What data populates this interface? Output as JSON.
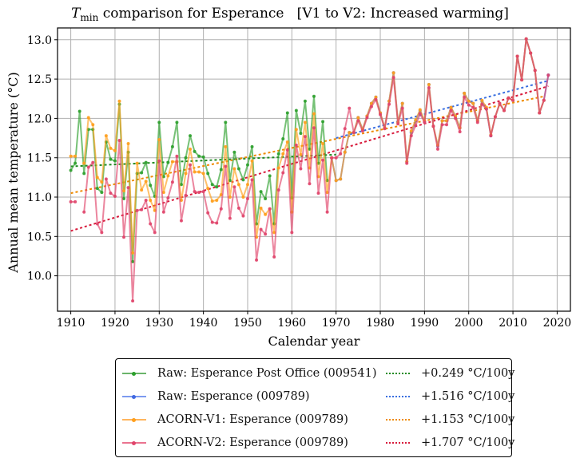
{
  "chart_data": {
    "type": "line",
    "title_symbol": "T",
    "title_subscript": "min",
    "title_rest": " comparison for Esperance   [V1 to V2: Increased warming]",
    "xlabel": "Calendar year",
    "ylabel": "Annual mean temperature (°C)",
    "xlim": [
      1907,
      2023
    ],
    "ylim": [
      9.55,
      13.15
    ],
    "xticks": [
      1910,
      1920,
      1930,
      1940,
      1950,
      1960,
      1970,
      1980,
      1990,
      2000,
      2010,
      2020
    ],
    "yticks": [
      10.0,
      10.5,
      11.0,
      11.5,
      12.0,
      12.5,
      13.0
    ],
    "ytick_labels": [
      "10.0",
      "10.5",
      "11.0",
      "11.5",
      "12.0",
      "12.5",
      "13.0"
    ],
    "grid": true,
    "legend_placement": "below",
    "series": [
      {
        "name": "Raw: Esperance Post Office (009541)",
        "color": "#2ca02c",
        "start_year": 1910,
        "values": [
          11.34,
          11.43,
          12.09,
          11.3,
          11.86,
          11.86,
          11.11,
          11.06,
          11.7,
          11.48,
          11.46,
          12.18,
          10.98,
          11.57,
          10.18,
          11.3,
          11.31,
          11.44,
          11.15,
          11.01,
          11.95,
          11.26,
          11.44,
          11.64,
          11.95,
          11.16,
          11.5,
          11.78,
          11.58,
          11.52,
          11.51,
          11.3,
          11.16,
          11.13,
          11.35,
          11.95,
          11.21,
          11.57,
          11.36,
          11.22,
          11.41,
          11.64,
          10.66,
          11.07,
          10.98,
          11.27,
          10.66,
          11.55,
          11.74,
          12.07,
          10.99,
          12.1,
          11.81,
          12.22,
          11.61,
          12.28,
          11.43,
          11.96,
          11.21
        ]
      },
      {
        "name": "Raw: Esperance (009789)",
        "color": "#4169e1",
        "start_year": 1969,
        "values": [
          11.5,
          11.21,
          11.23,
          11.57,
          11.82,
          11.82,
          12.01,
          11.86,
          12.03,
          12.19,
          12.27,
          12.07,
          11.88,
          12.22,
          12.58,
          11.95,
          12.19,
          11.45,
          11.82,
          11.97,
          12.1,
          11.96,
          12.43,
          11.9,
          11.65,
          11.97,
          11.97,
          12.14,
          12.03,
          11.88,
          12.32,
          12.22,
          12.19,
          11.97,
          12.22,
          12.12,
          11.78,
          12.02,
          12.19,
          12.1,
          12.26,
          12.23,
          12.79,
          12.49,
          13.01,
          12.83,
          12.61,
          12.07,
          12.23,
          12.55
        ]
      },
      {
        "name": "ACORN-V1: Esperance (009789)",
        "color": "#ff9f1c",
        "start_year": 1910,
        "values": [
          11.52,
          11.52,
          null,
          11.43,
          12.01,
          11.92,
          11.25,
          11.19,
          11.78,
          11.62,
          11.59,
          12.22,
          11.08,
          11.68,
          10.29,
          11.43,
          11.09,
          11.2,
          10.96,
          10.83,
          11.73,
          11.06,
          11.27,
          11.45,
          11.45,
          10.96,
          11.3,
          11.61,
          11.32,
          11.32,
          11.3,
          11.11,
          10.95,
          10.96,
          11.03,
          11.64,
          11.0,
          11.36,
          11.16,
          11.0,
          11.16,
          11.46,
          10.49,
          10.86,
          10.78,
          10.85,
          10.55,
          11.37,
          11.55,
          11.7,
          10.81,
          11.86,
          11.54,
          11.95,
          11.37,
          12.06,
          11.26,
          11.68,
          11.06,
          11.5,
          11.21,
          11.23,
          11.57,
          11.82,
          11.82,
          12.01,
          11.86,
          12.03,
          12.19,
          12.27,
          12.07,
          11.88,
          12.22,
          12.58,
          11.95,
          12.19,
          11.45,
          11.84,
          11.98,
          12.11,
          11.97,
          12.43,
          11.9,
          11.66,
          11.97,
          11.97,
          12.14,
          12.03,
          11.88,
          12.32,
          12.22,
          12.19,
          11.97,
          12.23,
          12.14,
          11.79,
          12.02,
          12.19,
          12.1,
          12.26,
          12.23,
          12.79,
          12.49,
          13.01,
          12.83,
          12.61,
          12.07,
          12.23
        ]
      },
      {
        "name": "ACORN-V2: Esperance (009789)",
        "color": "#e0446a",
        "start_year": 1910,
        "values": [
          10.94,
          10.94,
          null,
          10.81,
          11.38,
          11.44,
          10.66,
          10.55,
          11.23,
          11.05,
          11.01,
          11.72,
          10.49,
          11.12,
          9.68,
          10.83,
          10.84,
          10.96,
          10.66,
          10.55,
          11.46,
          10.81,
          10.99,
          11.19,
          11.52,
          10.7,
          11.02,
          11.41,
          11.07,
          11.06,
          11.07,
          10.8,
          10.68,
          10.67,
          10.85,
          11.39,
          10.73,
          11.13,
          10.86,
          10.76,
          10.98,
          11.22,
          10.2,
          10.59,
          10.53,
          10.85,
          10.24,
          11.09,
          11.31,
          11.6,
          10.55,
          11.66,
          11.36,
          11.77,
          11.17,
          11.88,
          11.05,
          11.47,
          10.81,
          11.5,
          11.5,
          11.55,
          11.87,
          12.13,
          11.82,
          11.97,
          11.84,
          12.01,
          12.15,
          12.24,
          12.05,
          11.87,
          12.18,
          12.52,
          11.93,
          12.13,
          11.43,
          11.78,
          11.91,
          12.06,
          11.95,
          12.39,
          11.9,
          11.61,
          11.92,
          11.92,
          12.1,
          12.0,
          11.83,
          12.27,
          12.17,
          12.14,
          11.95,
          12.18,
          12.12,
          11.78,
          12.02,
          12.19,
          12.1,
          12.26,
          12.23,
          12.79,
          12.49,
          13.01,
          12.83,
          12.61,
          12.07,
          12.23,
          12.55
        ]
      }
    ],
    "trends": [
      {
        "label": "+0.249 °C/100y",
        "color": "#228b22",
        "x": [
          1910,
          1970
        ],
        "y": [
          11.39,
          11.54
        ]
      },
      {
        "label": "+1.516 °C/100y",
        "color": "#3a6fe0",
        "x": [
          1970,
          2018
        ],
        "y": [
          11.75,
          12.48
        ]
      },
      {
        "label": "+1.153 °C/100y",
        "color": "#ee8a00",
        "x": [
          1910,
          2017
        ],
        "y": [
          11.05,
          12.28
        ]
      },
      {
        "label": "+1.707 °C/100y",
        "color": "#d81b3c",
        "x": [
          1910,
          2018
        ],
        "y": [
          10.57,
          12.41
        ]
      }
    ]
  },
  "legend": {
    "series_labels": [
      "Raw: Esperance Post Office (009541)",
      "Raw: Esperance (009789)",
      "ACORN-V1: Esperance (009789)",
      "ACORN-V2: Esperance (009789)"
    ],
    "trend_labels": [
      "+0.249 °C/100y",
      "+1.516 °C/100y",
      "+1.153 °C/100y",
      "+1.707 °C/100y"
    ]
  }
}
